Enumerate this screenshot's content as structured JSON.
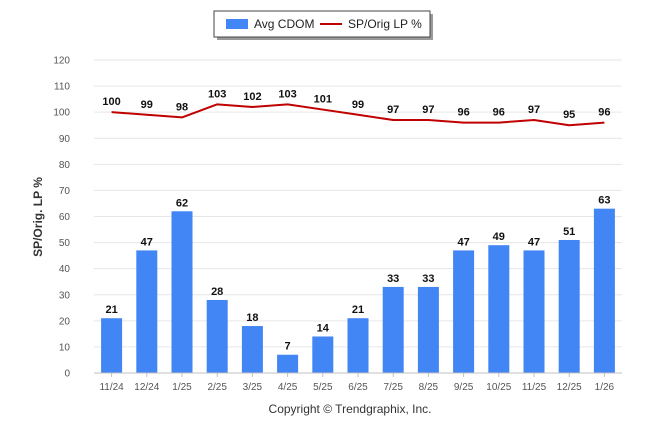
{
  "chart_data": {
    "type": "bar",
    "categories": [
      "11/24",
      "12/24",
      "1/25",
      "2/25",
      "3/25",
      "4/25",
      "5/25",
      "6/25",
      "7/25",
      "8/25",
      "9/25",
      "10/25",
      "11/25",
      "12/25",
      "1/26"
    ],
    "series": [
      {
        "name": "Avg CDOM",
        "type": "bar",
        "color": "#4285f4",
        "values": [
          21,
          47,
          62,
          28,
          18,
          7,
          14,
          21,
          33,
          33,
          47,
          49,
          47,
          51,
          63
        ]
      },
      {
        "name": "SP/Orig LP %",
        "type": "line",
        "color": "#c00000",
        "values": [
          100,
          99,
          98,
          103,
          102,
          103,
          101,
          99,
          97,
          97,
          96,
          96,
          97,
          95,
          96
        ]
      }
    ],
    "ylabel": "SP/Orig. LP %",
    "ylim": [
      0,
      120
    ],
    "yticks": [
      0,
      10,
      20,
      30,
      40,
      50,
      60,
      70,
      80,
      90,
      100,
      110,
      120
    ],
    "grid": true,
    "legend": "top-center"
  },
  "footer": {
    "copyright": "Copyright © Trendgraphix, Inc."
  }
}
